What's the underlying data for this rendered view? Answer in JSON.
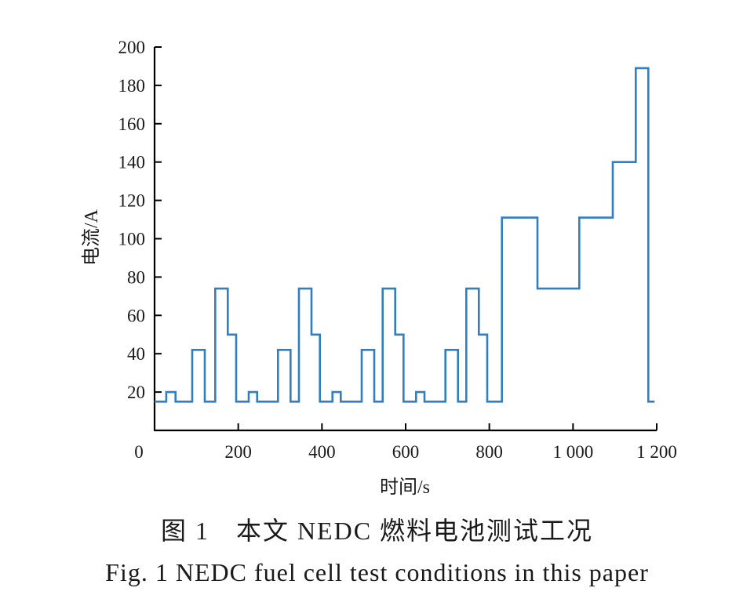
{
  "figure": {
    "caption_zh": "图 1　本文 NEDC 燃料电池测试工况",
    "caption_en": "Fig. 1 NEDC fuel cell test conditions in this paper"
  },
  "colors": {
    "series": "#2f7fc1",
    "axis": "#000000"
  },
  "chart_data": {
    "type": "line",
    "title": "",
    "xlabel": "时间/s",
    "ylabel": "电流/A",
    "xlim": [
      0,
      1200
    ],
    "ylim": [
      0,
      200
    ],
    "x_ticks": [
      0,
      200,
      400,
      600,
      800,
      1000,
      1200
    ],
    "x_tick_labels": [
      "0",
      "200",
      "400",
      "600",
      "800",
      "1 000",
      "1 200"
    ],
    "y_ticks": [
      20,
      40,
      60,
      80,
      100,
      120,
      140,
      160,
      180,
      200
    ],
    "y_tick_labels": [
      "20",
      "40",
      "60",
      "80",
      "100",
      "120",
      "140",
      "160",
      "180",
      "200"
    ],
    "grid": false,
    "legend": "none",
    "step": true,
    "series": [
      {
        "x": [
          0,
          28,
          28,
          50,
          50,
          90,
          90,
          120,
          120,
          145,
          145,
          175,
          175,
          195,
          195,
          225,
          225,
          245,
          245,
          295,
          295,
          325,
          325,
          345,
          345,
          375,
          375,
          395,
          395,
          425,
          425,
          445,
          445,
          495,
          495,
          525,
          525,
          545,
          545,
          575,
          575,
          595,
          595,
          625,
          625,
          645,
          645,
          695,
          695,
          725,
          725,
          745,
          745,
          775,
          775,
          795,
          795,
          830,
          830,
          915,
          915,
          1015,
          1015,
          1095,
          1095,
          1150,
          1150,
          1180,
          1180,
          1195
        ],
        "values": [
          15,
          15,
          20,
          20,
          15,
          15,
          42,
          42,
          15,
          15,
          74,
          74,
          50,
          50,
          15,
          15,
          20,
          20,
          15,
          15,
          42,
          42,
          15,
          15,
          74,
          74,
          50,
          50,
          15,
          15,
          20,
          20,
          15,
          15,
          42,
          42,
          15,
          15,
          74,
          74,
          50,
          50,
          15,
          15,
          20,
          20,
          15,
          15,
          42,
          42,
          15,
          15,
          74,
          74,
          50,
          50,
          15,
          15,
          111,
          111,
          74,
          74,
          111,
          111,
          140,
          140,
          189,
          189,
          15,
          15
        ]
      }
    ]
  }
}
